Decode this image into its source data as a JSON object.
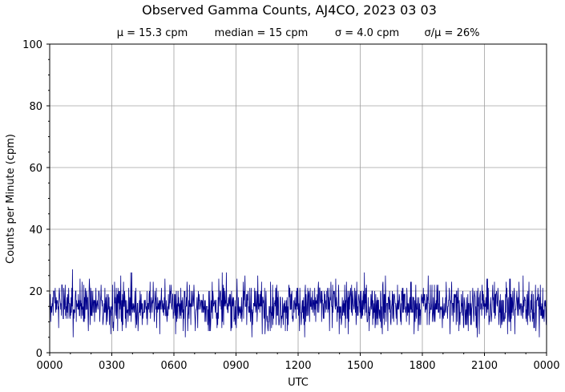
{
  "chart_data": {
    "type": "line",
    "title": "Observed Gamma Counts, AJ4CO, 2023 03 03",
    "subtitle": [
      "μ = 15.3 cpm",
      "median = 15 cpm",
      "σ = 4.0 cpm",
      "σ/μ = 26%"
    ],
    "xlabel": "UTC",
    "ylabel": "Counts per Minute (cpm)",
    "x_ticks": [
      {
        "label": "0000",
        "minute": 0
      },
      {
        "label": "0300",
        "minute": 180
      },
      {
        "label": "0600",
        "minute": 360
      },
      {
        "label": "0900",
        "minute": 540
      },
      {
        "label": "1200",
        "minute": 720
      },
      {
        "label": "1500",
        "minute": 900
      },
      {
        "label": "1800",
        "minute": 1080
      },
      {
        "label": "2100",
        "minute": 1260
      },
      {
        "label": "0000",
        "minute": 1440
      }
    ],
    "y_ticks": [
      0,
      20,
      40,
      60,
      80,
      100
    ],
    "xlim": [
      0,
      1440
    ],
    "ylim": [
      0,
      100
    ],
    "grid": true,
    "series": [
      {
        "color": "#00008b",
        "sample_interval_minutes": 1,
        "mean": 15.3,
        "median": 15,
        "std": 4.0,
        "min": 5,
        "max": 30,
        "note_values": "1440 one-minute samples; individual counts not legible at this scale"
      }
    ]
  }
}
